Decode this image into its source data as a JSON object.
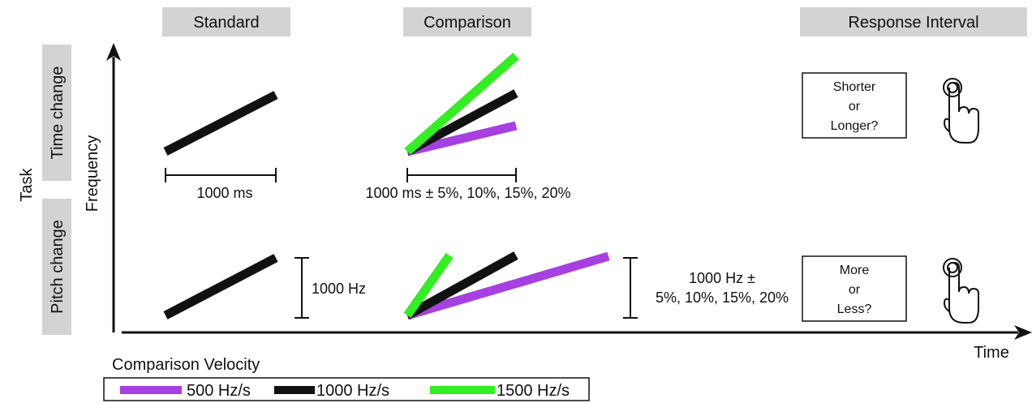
{
  "colors": {
    "velocity_500": "#a640e0",
    "velocity_1000": "#111111",
    "velocity_1500": "#33ee22",
    "header_fill": "#d3d3d3",
    "text": "#111111"
  },
  "phases": {
    "standard": "Standard",
    "comparison": "Comparison",
    "response": "Response Interval"
  },
  "tasks": {
    "group_label": "Task",
    "time_change": "Time change",
    "pitch_change": "Pitch change"
  },
  "axes": {
    "y_label": "Frequency",
    "x_label": "Time"
  },
  "time_task": {
    "standard_duration": "1000 ms",
    "comparison_duration": "1000 ms ± 5%, 10%, 15%, 20%",
    "response_lines": [
      "Shorter",
      "or",
      "Longer?"
    ],
    "response_icon": "hand-pointer-icon"
  },
  "pitch_task": {
    "standard_range": "1000 Hz",
    "comparison_range_lines": [
      "1000 Hz ±",
      "5%, 10%, 15%, 20%"
    ],
    "response_lines": [
      "More",
      "or",
      "Less?"
    ],
    "response_icon": "hand-pointer-icon"
  },
  "legend": {
    "title": "Comparison Velocity",
    "items": [
      {
        "label": "500 Hz/s",
        "color": "#a640e0"
      },
      {
        "label": "1000 Hz/s",
        "color": "#111111"
      },
      {
        "label": "1500 Hz/s",
        "color": "#33ee22"
      }
    ]
  }
}
